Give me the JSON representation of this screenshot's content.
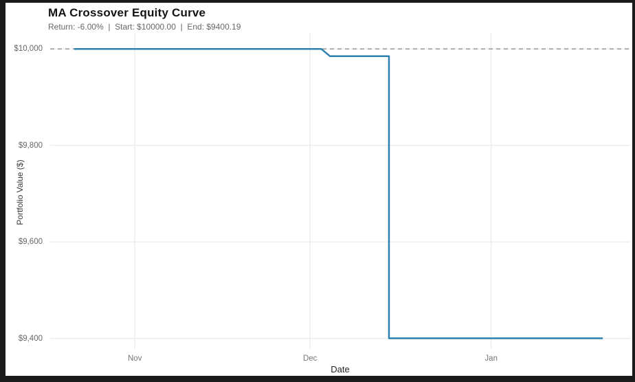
{
  "frame": {
    "background": "#1a1a1a",
    "canvas_background": "#ffffff"
  },
  "chart_data": {
    "type": "line",
    "title": "MA Crossover Equity Curve",
    "subtitle": "Return: -6.00%  |  Start: $10000.00  |  End: $9400.19",
    "subtitle_parts": {
      "return": "-6.00%",
      "start": "$10000.00",
      "end": "$9400.19"
    },
    "xlabel": "Date",
    "ylabel": "Portfolio Value ($)",
    "legend": {
      "show": false
    },
    "grid": {
      "show": true,
      "color": "#ebebeb"
    },
    "x_axis": {
      "unit": "days_from_nov_1",
      "domain": [
        -14.5,
        84.8
      ],
      "ticks": [
        {
          "d": 0,
          "label": "Nov"
        },
        {
          "d": 30,
          "label": "Dec"
        },
        {
          "d": 61,
          "label": "Jan"
        }
      ]
    },
    "y_axis": {
      "domain": [
        9378,
        10033
      ],
      "ticks": [
        {
          "v": 10000,
          "label": "$10,000"
        },
        {
          "v": 9800,
          "label": "$9,800"
        },
        {
          "v": 9600,
          "label": "$9,600"
        },
        {
          "v": 9400,
          "label": "$9,400"
        }
      ]
    },
    "reference_line": {
      "value": 10000,
      "color": "#8a8a8a",
      "dash": [
        6,
        5
      ],
      "width": 1.3
    },
    "series": [
      {
        "name": "equity-curve",
        "color": "#2d7fb0",
        "width": 2.5,
        "points": [
          {
            "date": "Oct 22",
            "d": -10.4,
            "value": 10000.0
          },
          {
            "date": "Dec 03",
            "d": 31.9,
            "value": 10000.0
          },
          {
            "date": "Dec 04",
            "d": 33.4,
            "value": 9985.0
          },
          {
            "date": "Dec 15",
            "d": 43.5,
            "value": 9985.0
          },
          {
            "date": "Dec 15",
            "d": 43.5,
            "value": 9400.19
          },
          {
            "date": "Jan 20",
            "d": 80.1,
            "value": 9400.19
          }
        ]
      }
    ]
  }
}
